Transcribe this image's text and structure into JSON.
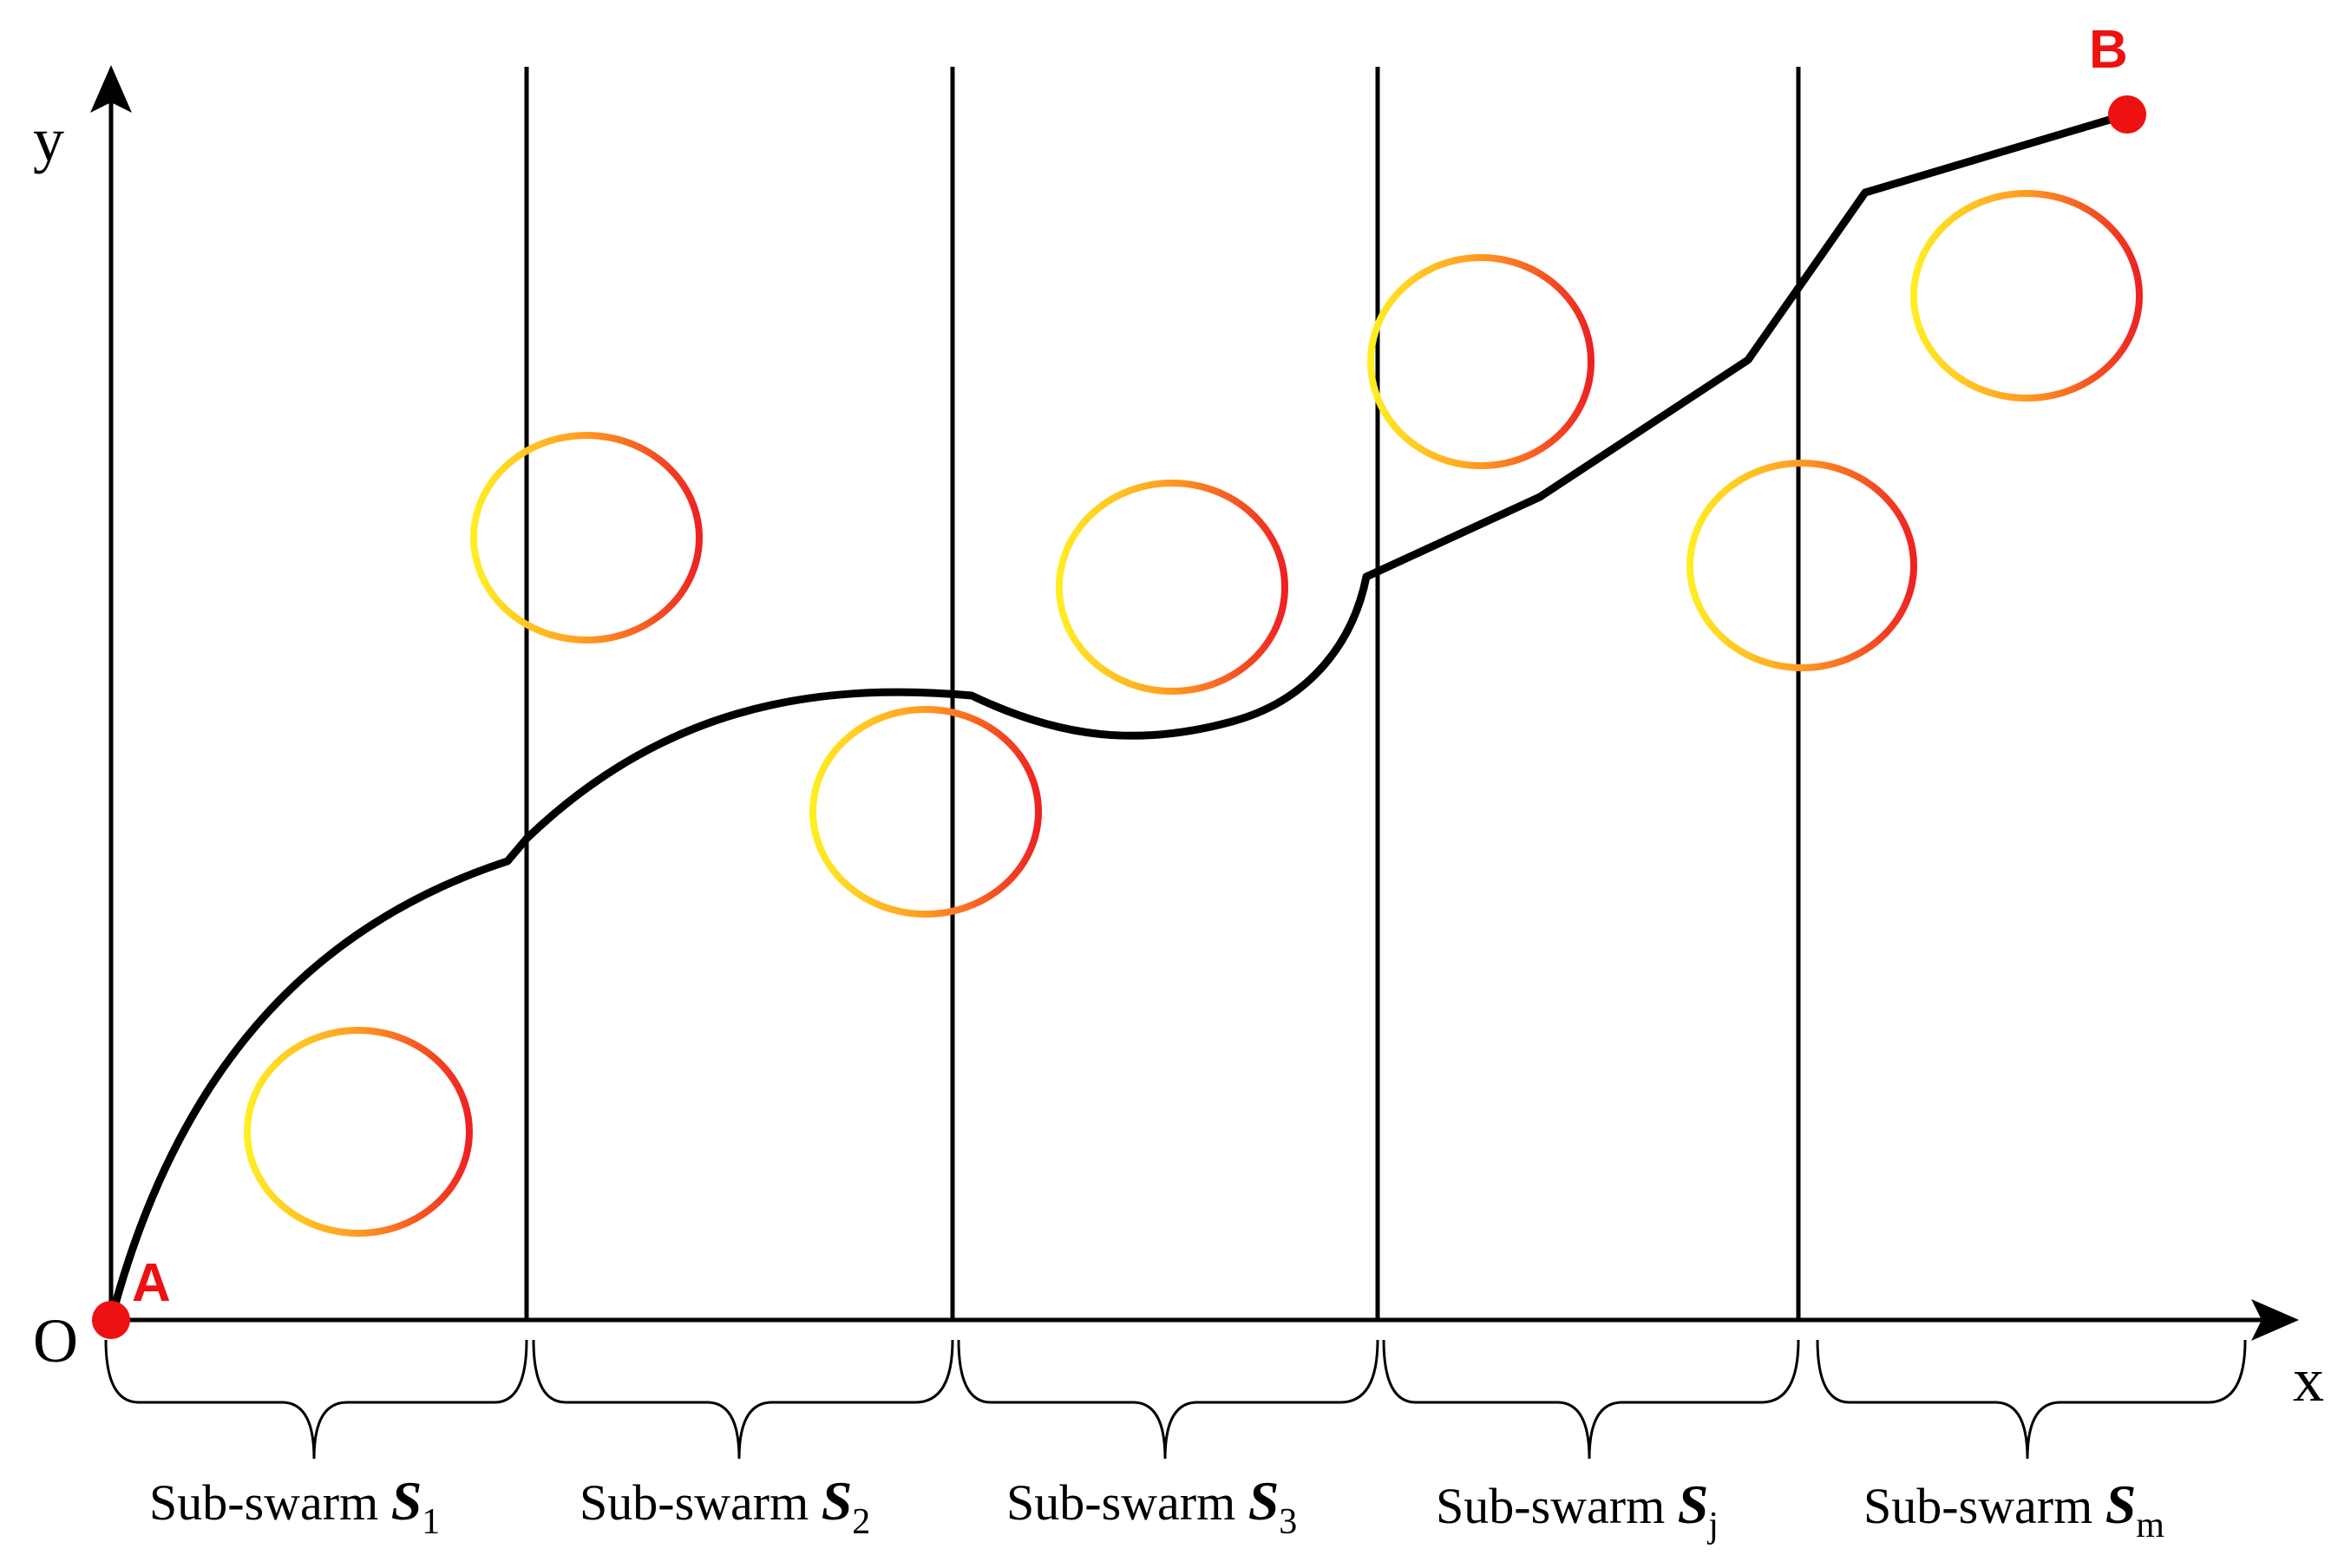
{
  "colors": {
    "line": "#000000",
    "point": "#ee1111",
    "obstacle_start": "#ffee22",
    "obstacle_mid": "#ff9922",
    "obstacle_end": "#ee2222"
  },
  "axes": {
    "origin_label": "O",
    "x_label": "x",
    "y_label": "y"
  },
  "points": {
    "start": "A",
    "end": "B"
  },
  "swarms": [
    {
      "prefix": "Sub-swarm ",
      "symbol": "S",
      "subscript": "1"
    },
    {
      "prefix": "Sub-swarm ",
      "symbol": "S",
      "subscript": "2"
    },
    {
      "prefix": "Sub-swarm ",
      "symbol": "S",
      "subscript": "3"
    },
    {
      "prefix": "Sub-swarm ",
      "symbol": "S",
      "subscript": "j"
    },
    {
      "prefix": "Sub-swarm ",
      "symbol": "S",
      "subscript": "m"
    }
  ],
  "obstacles": [
    {
      "name": "obstacle-1"
    },
    {
      "name": "obstacle-2"
    },
    {
      "name": "obstacle-3"
    },
    {
      "name": "obstacle-4"
    },
    {
      "name": "obstacle-5"
    },
    {
      "name": "obstacle-6"
    },
    {
      "name": "obstacle-7"
    }
  ]
}
